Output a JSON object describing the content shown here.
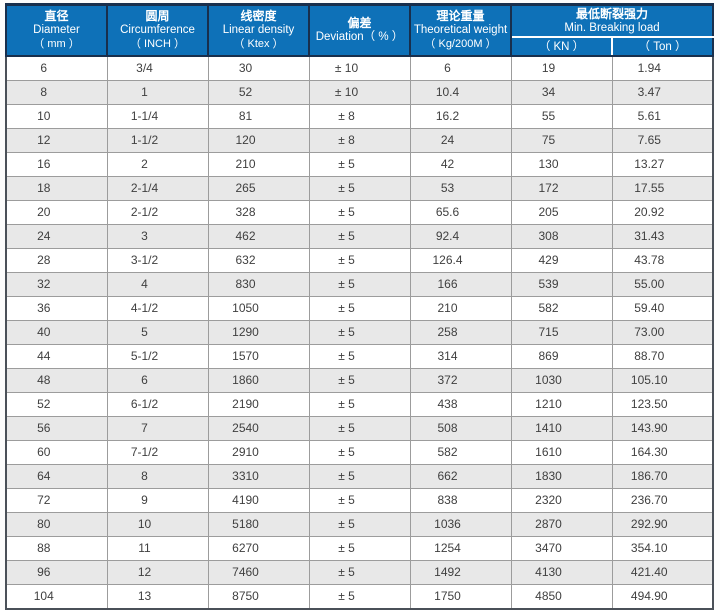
{
  "table": {
    "colors": {
      "header_bg": "#0e71b8",
      "header_border": "#182f4d",
      "header_text": "#ffffff",
      "stripe": "#e8e8e8",
      "body_border": "#9c9c9c",
      "body_text": "#3f3f3f"
    },
    "column_keys": [
      "diameter",
      "circumference",
      "linear-density",
      "deviation",
      "theoretical-weight",
      "kn",
      "ton"
    ],
    "columns": [
      {
        "zh": "直径",
        "en": "Diameter",
        "unit": "（ mm ）"
      },
      {
        "zh": "圆周",
        "en": "Circumference",
        "unit": "（ INCH ）"
      },
      {
        "zh": "线密度",
        "en": "Linear density",
        "unit": "（ Ktex ）"
      },
      {
        "zh": "偏差",
        "en": "Deviation（ % ）"
      },
      {
        "zh": "理论重量",
        "en": "Theoretical weight",
        "unit": "（ Kg/200M ）"
      }
    ],
    "breaking_load": {
      "zh": "最低断裂强力",
      "en": "Min. Breaking load",
      "sub": [
        "（ KN ）",
        "（ Ton ）"
      ]
    },
    "rows": [
      [
        "6",
        "3/4",
        "30",
        "± 10",
        "6",
        "19",
        "1.94"
      ],
      [
        "8",
        "1",
        "52",
        "± 10",
        "10.4",
        "34",
        "3.47"
      ],
      [
        "10",
        "1-1/4",
        "81",
        "± 8",
        "16.2",
        "55",
        "5.61"
      ],
      [
        "12",
        "1-1/2",
        "120",
        "± 8",
        "24",
        "75",
        "7.65"
      ],
      [
        "16",
        "2",
        "210",
        "± 5",
        "42",
        "130",
        "13.27"
      ],
      [
        "18",
        "2-1/4",
        "265",
        "± 5",
        "53",
        "172",
        "17.55"
      ],
      [
        "20",
        "2-1/2",
        "328",
        "± 5",
        "65.6",
        "205",
        "20.92"
      ],
      [
        "24",
        "3",
        "462",
        "± 5",
        "92.4",
        "308",
        "31.43"
      ],
      [
        "28",
        "3-1/2",
        "632",
        "± 5",
        "126.4",
        "429",
        "43.78"
      ],
      [
        "32",
        "4",
        "830",
        "± 5",
        "166",
        "539",
        "55.00"
      ],
      [
        "36",
        "4-1/2",
        "1050",
        "± 5",
        "210",
        "582",
        "59.40"
      ],
      [
        "40",
        "5",
        "1290",
        "± 5",
        "258",
        "715",
        "73.00"
      ],
      [
        "44",
        "5-1/2",
        "1570",
        "± 5",
        "314",
        "869",
        "88.70"
      ],
      [
        "48",
        "6",
        "1860",
        "± 5",
        "372",
        "1030",
        "105.10"
      ],
      [
        "52",
        "6-1/2",
        "2190",
        "± 5",
        "438",
        "1210",
        "123.50"
      ],
      [
        "56",
        "7",
        "2540",
        "± 5",
        "508",
        "1410",
        "143.90"
      ],
      [
        "60",
        "7-1/2",
        "2910",
        "± 5",
        "582",
        "1610",
        "164.30"
      ],
      [
        "64",
        "8",
        "3310",
        "± 5",
        "662",
        "1830",
        "186.70"
      ],
      [
        "72",
        "9",
        "4190",
        "± 5",
        "838",
        "2320",
        "236.70"
      ],
      [
        "80",
        "10",
        "5180",
        "± 5",
        "1036",
        "2870",
        "292.90"
      ],
      [
        "88",
        "11",
        "6270",
        "± 5",
        "1254",
        "3470",
        "354.10"
      ],
      [
        "96",
        "12",
        "7460",
        "± 5",
        "1492",
        "4130",
        "421.40"
      ],
      [
        "104",
        "13",
        "8750",
        "± 5",
        "1750",
        "4850",
        "494.90"
      ]
    ]
  }
}
